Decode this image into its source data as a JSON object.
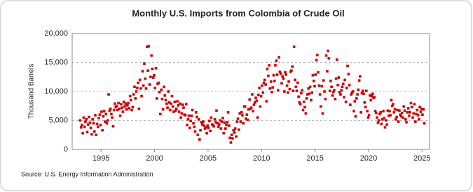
{
  "chart_data": {
    "type": "scatter",
    "title": "Monthly U.S. Imports from Colombia of Crude Oil",
    "y_label": "Thousand Barrels",
    "source": "Source: U.S. Energy Information Administration",
    "color": "#cc0000",
    "grid": true,
    "xlim": [
      1992.3,
      2025.7
    ],
    "xticks": [
      1995,
      2000,
      2005,
      2010,
      2015,
      2020,
      2025
    ],
    "ylim": [
      0,
      20000
    ],
    "yticks": [
      0,
      {
        "value": 5000,
        "label": "5,000"
      },
      {
        "value": 10000,
        "label": "10,000"
      },
      {
        "value": 15000,
        "label": "15,000"
      },
      {
        "value": 20000,
        "label": "20,000"
      }
    ],
    "x": [
      1993.04,
      1993.13,
      1993.21,
      1993.29,
      1993.38,
      1993.46,
      1993.54,
      1993.63,
      1993.71,
      1993.79,
      1993.88,
      1993.96,
      1994.04,
      1994.13,
      1994.21,
      1994.29,
      1994.38,
      1994.46,
      1994.54,
      1994.63,
      1994.71,
      1994.79,
      1994.88,
      1994.96,
      1995.04,
      1995.13,
      1995.21,
      1995.29,
      1995.38,
      1995.46,
      1995.54,
      1995.63,
      1995.71,
      1995.79,
      1995.88,
      1995.96,
      1996.04,
      1996.13,
      1996.21,
      1996.29,
      1996.38,
      1996.46,
      1996.54,
      1996.63,
      1996.71,
      1996.79,
      1996.88,
      1996.96,
      1997.04,
      1997.13,
      1997.21,
      1997.29,
      1997.38,
      1997.46,
      1997.54,
      1997.63,
      1997.71,
      1997.79,
      1997.88,
      1997.96,
      1998.04,
      1998.13,
      1998.21,
      1998.29,
      1998.38,
      1998.46,
      1998.54,
      1998.63,
      1998.71,
      1998.79,
      1998.88,
      1998.96,
      1999.04,
      1999.13,
      1999.21,
      1999.29,
      1999.38,
      1999.46,
      1999.54,
      1999.63,
      1999.71,
      1999.79,
      1999.88,
      1999.96,
      2000.04,
      2000.13,
      2000.21,
      2000.29,
      2000.38,
      2000.46,
      2000.54,
      2000.63,
      2000.71,
      2000.79,
      2000.88,
      2000.96,
      2001.04,
      2001.13,
      2001.21,
      2001.29,
      2001.38,
      2001.46,
      2001.54,
      2001.63,
      2001.71,
      2001.79,
      2001.88,
      2001.96,
      2002.04,
      2002.13,
      2002.21,
      2002.29,
      2002.38,
      2002.46,
      2002.54,
      2002.63,
      2002.71,
      2002.79,
      2002.88,
      2002.96,
      2003.04,
      2003.13,
      2003.21,
      2003.29,
      2003.38,
      2003.46,
      2003.54,
      2003.63,
      2003.71,
      2003.79,
      2003.88,
      2003.96,
      2004.04,
      2004.13,
      2004.21,
      2004.29,
      2004.38,
      2004.46,
      2004.54,
      2004.63,
      2004.71,
      2004.79,
      2004.88,
      2004.96,
      2005.04,
      2005.13,
      2005.21,
      2005.29,
      2005.38,
      2005.46,
      2005.54,
      2005.63,
      2005.71,
      2005.79,
      2005.88,
      2005.96,
      2006.04,
      2006.13,
      2006.21,
      2006.29,
      2006.38,
      2006.46,
      2006.54,
      2006.63,
      2006.71,
      2006.79,
      2006.88,
      2006.96,
      2007.04,
      2007.13,
      2007.21,
      2007.29,
      2007.38,
      2007.46,
      2007.54,
      2007.63,
      2007.71,
      2007.79,
      2007.88,
      2007.96,
      2008.04,
      2008.13,
      2008.21,
      2008.29,
      2008.38,
      2008.46,
      2008.54,
      2008.63,
      2008.71,
      2008.79,
      2008.88,
      2008.96,
      2009.04,
      2009.13,
      2009.21,
      2009.29,
      2009.38,
      2009.46,
      2009.54,
      2009.63,
      2009.71,
      2009.79,
      2009.88,
      2009.96,
      2010.04,
      2010.13,
      2010.21,
      2010.29,
      2010.38,
      2010.46,
      2010.54,
      2010.63,
      2010.71,
      2010.79,
      2010.88,
      2010.96,
      2011.04,
      2011.13,
      2011.21,
      2011.29,
      2011.38,
      2011.46,
      2011.54,
      2011.63,
      2011.71,
      2011.79,
      2011.88,
      2011.96,
      2012.04,
      2012.13,
      2012.21,
      2012.29,
      2012.38,
      2012.46,
      2012.54,
      2012.63,
      2012.71,
      2012.79,
      2012.88,
      2012.96,
      2013.04,
      2013.13,
      2013.21,
      2013.29,
      2013.38,
      2013.46,
      2013.54,
      2013.63,
      2013.71,
      2013.79,
      2013.88,
      2013.96,
      2014.04,
      2014.13,
      2014.21,
      2014.29,
      2014.38,
      2014.46,
      2014.54,
      2014.63,
      2014.71,
      2014.79,
      2014.88,
      2014.96,
      2015.04,
      2015.13,
      2015.21,
      2015.29,
      2015.38,
      2015.46,
      2015.54,
      2015.63,
      2015.71,
      2015.79,
      2015.88,
      2015.96,
      2016.04,
      2016.13,
      2016.21,
      2016.29,
      2016.38,
      2016.46,
      2016.54,
      2016.63,
      2016.71,
      2016.79,
      2016.88,
      2016.96,
      2017.04,
      2017.13,
      2017.21,
      2017.29,
      2017.38,
      2017.46,
      2017.54,
      2017.63,
      2017.71,
      2017.79,
      2017.88,
      2017.96,
      2018.04,
      2018.13,
      2018.21,
      2018.29,
      2018.38,
      2018.46,
      2018.54,
      2018.63,
      2018.71,
      2018.79,
      2018.88,
      2018.96,
      2019.04,
      2019.13,
      2019.21,
      2019.29,
      2019.38,
      2019.46,
      2019.54,
      2019.63,
      2019.71,
      2019.79,
      2019.88,
      2019.96,
      2020.04,
      2020.13,
      2020.21,
      2020.29,
      2020.38,
      2020.46,
      2020.54,
      2020.63,
      2020.71,
      2020.79,
      2020.88,
      2020.96,
      2021.04,
      2021.13,
      2021.21,
      2021.29,
      2021.38,
      2021.46,
      2021.54,
      2021.63,
      2021.71,
      2021.79,
      2021.88,
      2021.96,
      2022.04,
      2022.13,
      2022.21,
      2022.29,
      2022.38,
      2022.46,
      2022.54,
      2022.63,
      2022.71,
      2022.79,
      2022.88,
      2022.96,
      2023.04,
      2023.13,
      2023.21,
      2023.29,
      2023.38,
      2023.46,
      2023.54,
      2023.63,
      2023.71,
      2023.79,
      2023.88,
      2023.96,
      2024.04,
      2024.13,
      2024.21,
      2024.29,
      2024.38,
      2024.46,
      2024.54,
      2024.63,
      2024.71,
      2024.79,
      2024.88,
      2024.96,
      2025.04,
      2025.13,
      2025.21
    ],
    "values": [
      5000,
      3800,
      4200,
      2800,
      5500,
      3900,
      4800,
      5200,
      3000,
      4300,
      5600,
      4600,
      3700,
      2600,
      5200,
      4500,
      3100,
      5900,
      2500,
      4400,
      3900,
      5400,
      6000,
      4200,
      6500,
      3300,
      5700,
      6600,
      4800,
      6100,
      4500,
      5000,
      9500,
      6700,
      7000,
      6100,
      5500,
      4000,
      6800,
      7900,
      7300,
      7500,
      6800,
      8000,
      7000,
      5800,
      7800,
      7200,
      6500,
      8200,
      7400,
      7900,
      6900,
      7600,
      8000,
      7100,
      9200,
      8500,
      6800,
      7300,
      9500,
      10800,
      8800,
      10000,
      10600,
      11500,
      7000,
      12000,
      10500,
      9200,
      13500,
      11000,
      14800,
      12200,
      10500,
      17700,
      13600,
      17800,
      11200,
      12500,
      16200,
      13900,
      12400,
      12800,
      10600,
      14000,
      8800,
      11300,
      11500,
      9900,
      6100,
      10300,
      8700,
      6900,
      10800,
      9300,
      8500,
      7900,
      7200,
      10000,
      8100,
      6800,
      7900,
      9200,
      7400,
      6500,
      8200,
      6700,
      7000,
      8300,
      7600,
      6500,
      7900,
      5500,
      6200,
      7700,
      7200,
      6000,
      5900,
      7800,
      4200,
      5200,
      5800,
      3700,
      4900,
      5800,
      6800,
      4500,
      3900,
      3100,
      6400,
      5600,
      2500,
      5200,
      1700,
      3300,
      4700,
      4300,
      4800,
      4100,
      3600,
      3800,
      2800,
      4100,
      3700,
      4900,
      3200,
      5500,
      4300,
      4200,
      4000,
      5200,
      4700,
      6700,
      4500,
      3900,
      4300,
      5000,
      3600,
      4800,
      5400,
      2800,
      4600,
      3600,
      4200,
      4700,
      6400,
      4100,
      2000,
      1200,
      2500,
      1900,
      3300,
      2900,
      3600,
      2200,
      4800,
      5300,
      3400,
      6200,
      4800,
      6400,
      5900,
      4500,
      7400,
      7400,
      5300,
      6000,
      5100,
      6900,
      8600,
      7000,
      7200,
      9500,
      6600,
      7700,
      8100,
      8900,
      8400,
      5500,
      9400,
      10600,
      7400,
      9200,
      11000,
      9800,
      11500,
      12000,
      11200,
      8300,
      13900,
      12700,
      14500,
      10500,
      11700,
      9900,
      10700,
      12800,
      11800,
      14500,
      15300,
      12900,
      10200,
      15900,
      13400,
      13100,
      11400,
      12600,
      12200,
      10000,
      13300,
      12900,
      11000,
      9800,
      11700,
      10400,
      13400,
      13600,
      14300,
      10100,
      17700,
      12000,
      10800,
      10100,
      11500,
      9100,
      8100,
      7800,
      9700,
      10200,
      6800,
      8200,
      7300,
      6200,
      8800,
      9500,
      10500,
      9600,
      10800,
      8500,
      9800,
      12800,
      11800,
      10900,
      12900,
      15400,
      16300,
      13300,
      11000,
      9500,
      7400,
      10900,
      6200,
      11900,
      10000,
      8700,
      16200,
      13500,
      17000,
      15700,
      10100,
      11800,
      10800,
      9300,
      9900,
      10200,
      8700,
      12200,
      15500,
      11100,
      12400,
      9900,
      9500,
      10200,
      10800,
      11300,
      9000,
      12000,
      8200,
      10600,
      14400,
      13000,
      11100,
      7700,
      9500,
      9800,
      10000,
      6600,
      8300,
      5700,
      8800,
      9500,
      10300,
      11900,
      12600,
      6400,
      9700,
      10100,
      9600,
      8100,
      7300,
      10100,
      6600,
      5500,
      5900,
      9300,
      8500,
      9200,
      9600,
      8900,
      9000,
      6600,
      6300,
      5500,
      4600,
      5000,
      6100,
      6400,
      4400,
      5200,
      6600,
      5400,
      3800,
      5000,
      4300,
      6700,
      5800,
      6600,
      5900,
      8500,
      7500,
      7800,
      6400,
      6900,
      5200,
      5600,
      6800,
      4800,
      6700,
      6000,
      5700,
      6300,
      5500,
      7400,
      6700,
      5200,
      4700,
      6400,
      7100,
      5800,
      6400,
      8000,
      7300,
      5500,
      6200,
      7800,
      4800,
      6100,
      6800,
      5900,
      5200,
      7300,
      6500,
      7000,
      6000,
      6900,
      4500
    ]
  }
}
